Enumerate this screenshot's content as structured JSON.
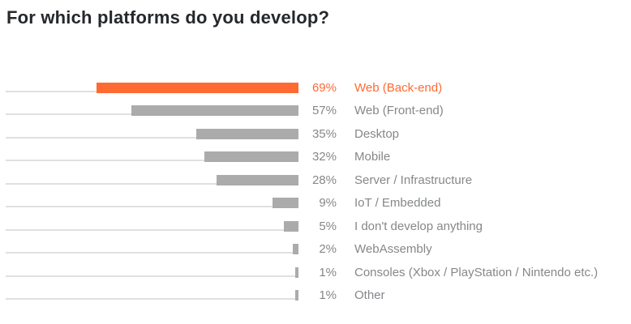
{
  "title": "For which platforms do you develop?",
  "colors": {
    "highlight": "#FF6A33",
    "bar": "#ABABAB",
    "track": "#E0E0E0",
    "text_muted": "#85878A",
    "title_text": "#25282C"
  },
  "chart_data": {
    "type": "bar",
    "orientation": "horizontal",
    "bar_alignment": "right",
    "title": "For which platforms do you develop?",
    "categories": [
      "Web (Back-end)",
      "Web (Front-end)",
      "Desktop",
      "Mobile",
      "Server / Infrastructure",
      "IoT / Embedded",
      "I don't develop anything",
      "WebAssembly",
      "Consoles (Xbox / PlayStation / Nintendo etc.)",
      "Other"
    ],
    "values": [
      69,
      57,
      35,
      32,
      28,
      9,
      5,
      2,
      1,
      1
    ],
    "value_labels": [
      "69%",
      "57%",
      "35%",
      "32%",
      "28%",
      "9%",
      "5%",
      "2%",
      "1%",
      "1%"
    ],
    "highlighted_index": 0,
    "xlim": [
      0,
      100
    ],
    "grid": false,
    "legend": false
  }
}
